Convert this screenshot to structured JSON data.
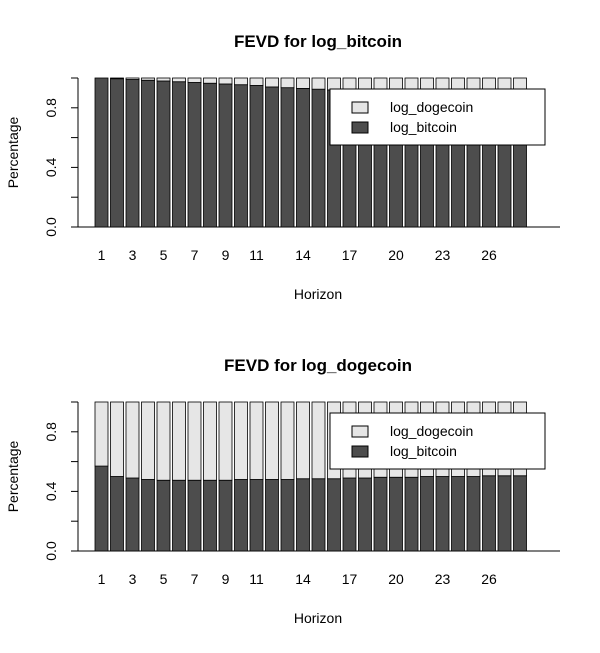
{
  "colors": {
    "log_dogecoin": "#e6e6e6",
    "log_bitcoin": "#4d4d4d",
    "stroke": "#000000",
    "background": "#ffffff"
  },
  "chart_data": [
    {
      "type": "bar",
      "stacked": true,
      "title": "FEVD for log_bitcoin",
      "xlabel": "Horizon",
      "ylabel": "Percentage",
      "ylim": [
        0,
        1
      ],
      "yticks": [
        "0.0",
        "0.4",
        "0.8"
      ],
      "xtick_labels": [
        {
          "horizon": 1,
          "label": "1"
        },
        {
          "horizon": 3,
          "label": "3"
        },
        {
          "horizon": 5,
          "label": "5"
        },
        {
          "horizon": 7,
          "label": "7"
        },
        {
          "horizon": 9,
          "label": "9"
        },
        {
          "horizon": 11,
          "label": "11"
        },
        {
          "horizon": 14,
          "label": "14"
        },
        {
          "horizon": 17,
          "label": "17"
        },
        {
          "horizon": 20,
          "label": "20"
        },
        {
          "horizon": 23,
          "label": "23"
        },
        {
          "horizon": 26,
          "label": "26"
        }
      ],
      "categories": [
        1,
        2,
        3,
        4,
        5,
        6,
        7,
        8,
        9,
        10,
        11,
        12,
        13,
        14,
        15,
        16,
        17,
        18,
        19,
        20,
        21,
        22,
        23,
        24,
        25,
        26,
        27,
        28
      ],
      "legend": {
        "position": "top-right",
        "entries": [
          "log_dogecoin",
          "log_bitcoin"
        ]
      },
      "series": [
        {
          "name": "log_bitcoin",
          "values": [
            1.0,
            0.995,
            0.99,
            0.985,
            0.98,
            0.975,
            0.97,
            0.965,
            0.96,
            0.955,
            0.95,
            0.94,
            0.935,
            0.93,
            0.925,
            0.92,
            0.915,
            0.91,
            0.905,
            0.9,
            0.895,
            0.89,
            0.885,
            0.88,
            0.875,
            0.87,
            0.865,
            0.86
          ]
        },
        {
          "name": "log_dogecoin",
          "values": [
            0.0,
            0.005,
            0.01,
            0.015,
            0.02,
            0.025,
            0.03,
            0.035,
            0.04,
            0.045,
            0.05,
            0.06,
            0.065,
            0.07,
            0.075,
            0.08,
            0.085,
            0.09,
            0.095,
            0.1,
            0.105,
            0.11,
            0.115,
            0.12,
            0.125,
            0.13,
            0.135,
            0.14
          ]
        }
      ]
    },
    {
      "type": "bar",
      "stacked": true,
      "title": "FEVD for log_dogecoin",
      "xlabel": "Horizon",
      "ylabel": "Percentage",
      "ylim": [
        0,
        1
      ],
      "yticks": [
        "0.0",
        "0.4",
        "0.8"
      ],
      "xtick_labels": [
        {
          "horizon": 1,
          "label": "1"
        },
        {
          "horizon": 3,
          "label": "3"
        },
        {
          "horizon": 5,
          "label": "5"
        },
        {
          "horizon": 7,
          "label": "7"
        },
        {
          "horizon": 9,
          "label": "9"
        },
        {
          "horizon": 11,
          "label": "11"
        },
        {
          "horizon": 14,
          "label": "14"
        },
        {
          "horizon": 17,
          "label": "17"
        },
        {
          "horizon": 20,
          "label": "20"
        },
        {
          "horizon": 23,
          "label": "23"
        },
        {
          "horizon": 26,
          "label": "26"
        }
      ],
      "categories": [
        1,
        2,
        3,
        4,
        5,
        6,
        7,
        8,
        9,
        10,
        11,
        12,
        13,
        14,
        15,
        16,
        17,
        18,
        19,
        20,
        21,
        22,
        23,
        24,
        25,
        26,
        27,
        28
      ],
      "legend": {
        "position": "top-right",
        "entries": [
          "log_dogecoin",
          "log_bitcoin"
        ]
      },
      "series": [
        {
          "name": "log_bitcoin",
          "values": [
            0.57,
            0.5,
            0.49,
            0.48,
            0.475,
            0.475,
            0.475,
            0.475,
            0.475,
            0.48,
            0.48,
            0.48,
            0.48,
            0.485,
            0.485,
            0.485,
            0.49,
            0.49,
            0.495,
            0.495,
            0.495,
            0.5,
            0.5,
            0.5,
            0.5,
            0.505,
            0.505,
            0.505
          ]
        },
        {
          "name": "log_dogecoin",
          "values": [
            0.43,
            0.5,
            0.51,
            0.52,
            0.525,
            0.525,
            0.525,
            0.525,
            0.525,
            0.52,
            0.52,
            0.52,
            0.52,
            0.515,
            0.515,
            0.515,
            0.51,
            0.51,
            0.505,
            0.505,
            0.505,
            0.5,
            0.5,
            0.5,
            0.5,
            0.495,
            0.495,
            0.495
          ]
        }
      ]
    }
  ]
}
